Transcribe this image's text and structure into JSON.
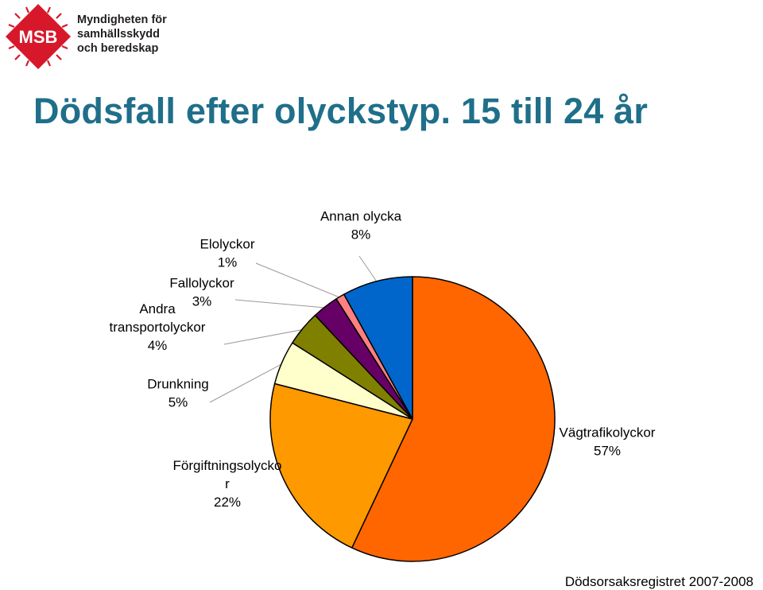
{
  "org": {
    "name_lines": [
      "Myndigheten för",
      "samhällsskydd",
      "och beredskap"
    ],
    "logo_text": "MSB",
    "logo_color": "#d7182a"
  },
  "title": "Dödsfall efter olyckstyp. 15 till 24 år",
  "title_color": "#1f6f8a",
  "source": "Dödsorsaksregistret 2007-2008",
  "chart_data": {
    "type": "pie",
    "start_angle_deg": 0,
    "direction": "clockwise",
    "legend": "none",
    "slices": [
      {
        "label_lines": [
          "Vägtrafikolyckor",
          "57%"
        ],
        "value": 57,
        "color": "#ff6600"
      },
      {
        "label_lines": [
          "Förgiftningsolycko",
          "r",
          "22%"
        ],
        "value": 22,
        "color": "#ff9900"
      },
      {
        "label_lines": [
          "Drunkning",
          "5%"
        ],
        "value": 5,
        "color": "#ffffcc"
      },
      {
        "label_lines": [
          "Andra",
          "transportolyckor",
          "4%"
        ],
        "value": 4,
        "color": "#808000"
      },
      {
        "label_lines": [
          "Fallolyckor",
          "3%"
        ],
        "value": 3,
        "color": "#660066"
      },
      {
        "label_lines": [
          "Elolyckor",
          "1%"
        ],
        "value": 1,
        "color": "#ff8080"
      },
      {
        "label_lines": [
          "Annan olycka",
          "8%"
        ],
        "value": 8,
        "color": "#0066cc"
      }
    ]
  }
}
